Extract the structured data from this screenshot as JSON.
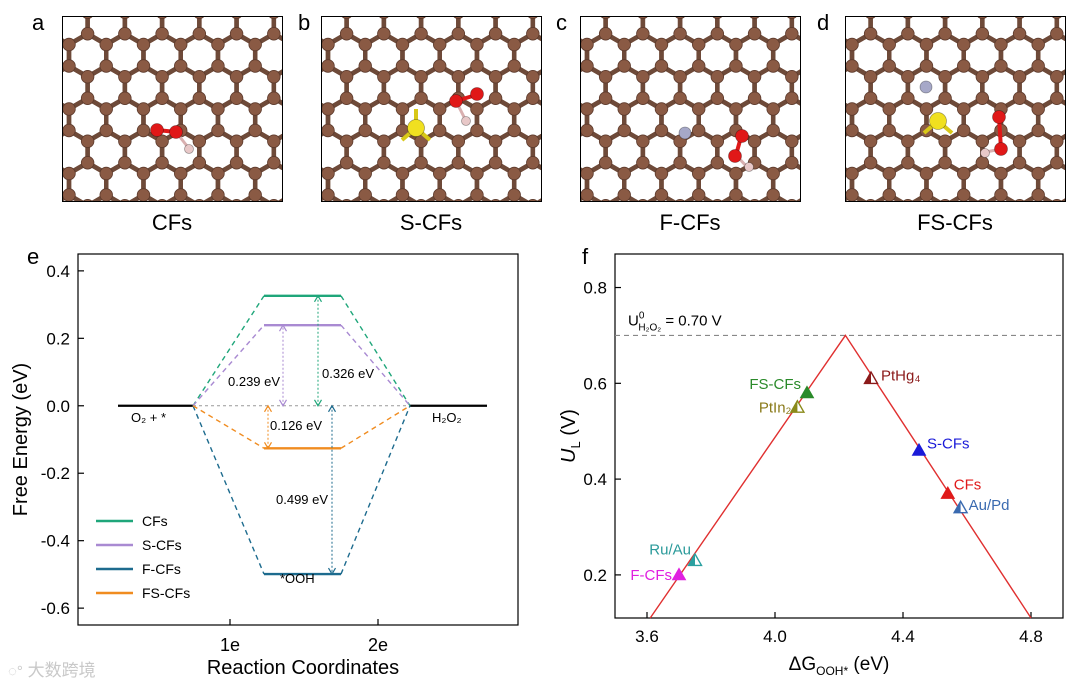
{
  "structures": {
    "panels": [
      {
        "letter": "a",
        "caption": "CFs",
        "dopants": []
      },
      {
        "letter": "b",
        "caption": "S-CFs",
        "dopants": [
          "S"
        ]
      },
      {
        "letter": "c",
        "caption": "F-CFs",
        "dopants": [
          "F"
        ]
      },
      {
        "letter": "d",
        "caption": "FS-CFs",
        "dopants": [
          "S",
          "F"
        ]
      }
    ],
    "colors": {
      "carbon": "#8a5a44",
      "bond": "#6e4a39",
      "oxygen": "#e01818",
      "hydrogen": "#e8c8c8",
      "sulfur": "#f0e020",
      "fluorine": "#a6a8c8"
    }
  },
  "chart_data": [
    {
      "panel": "e",
      "type": "line",
      "title": "",
      "xlabel": "Reaction Coordinates",
      "ylabel": "Free Energy (eV)",
      "ylim": [
        -0.65,
        0.45
      ],
      "yticks": [
        "0.4",
        "0.2",
        "0.0",
        "-0.2",
        "-0.4",
        "-0.6"
      ],
      "yticks_values": [
        0.4,
        0.2,
        0.0,
        -0.2,
        -0.4,
        -0.6
      ],
      "xticks": [
        "1e",
        "2e"
      ],
      "levels": [
        {
          "name": "CFs",
          "ooh": 0.326,
          "color": "#1fa67a"
        },
        {
          "name": "S-CFs",
          "ooh": 0.239,
          "color": "#a98ad2"
        },
        {
          "name": "F-CFs",
          "ooh": -0.499,
          "color": "#1d6b8e"
        },
        {
          "name": "FS-CFs",
          "ooh": -0.126,
          "color": "#f08c20"
        }
      ],
      "state_labels": {
        "initial": "O₂ + *",
        "intermediate": "*OOH",
        "final": "H₂O₂"
      },
      "annotations": [
        "0.239 eV",
        "0.326 eV",
        "0.126 eV",
        "0.499 eV"
      ]
    },
    {
      "panel": "f",
      "type": "scatter",
      "title": "",
      "xlabel": "ΔG",
      "xlabel_sub": "OOH*",
      "xlabel_suffix": " (eV)",
      "ylabel": "U",
      "ylabel_sub": "L",
      "ylabel_suffix": " (V)",
      "xlim": [
        3.5,
        4.9
      ],
      "ylim": [
        0.11,
        0.87
      ],
      "xticks": [
        "3.6",
        "4.0",
        "4.4",
        "4.8"
      ],
      "xticks_values": [
        3.6,
        4.0,
        4.4,
        4.8
      ],
      "yticks": [
        "0.2",
        "0.4",
        "0.6",
        "0.8"
      ],
      "yticks_values": [
        0.2,
        0.4,
        0.6,
        0.8
      ],
      "volcano": {
        "apex": [
          4.22,
          0.7
        ],
        "left_end": [
          3.61,
          0.11
        ],
        "right_end": [
          4.8,
          0.11
        ],
        "color": "#e03030"
      },
      "reference": {
        "value": 0.7,
        "label_prefix": "U",
        "label_sup": "0",
        "label_sub": "H₂O₂",
        "label_suffix": " = 0.70 V"
      },
      "points": [
        {
          "name": "FS-CFs",
          "x": 4.1,
          "y": 0.58,
          "color": "#2a8a2a",
          "filled": true,
          "text_color": "#2a8a2a"
        },
        {
          "name": "PtIn₂",
          "x": 4.07,
          "y": 0.55,
          "color": "#8a8a1a",
          "filled": false,
          "text_color": "#8a7a1a"
        },
        {
          "name": "PtHg₄",
          "x": 4.3,
          "y": 0.61,
          "color": "#8b1a1a",
          "filled": false,
          "text_color": "#8b1a1a"
        },
        {
          "name": "S-CFs",
          "x": 4.45,
          "y": 0.46,
          "color": "#1a1ad8",
          "filled": true,
          "text_color": "#1a1ad8"
        },
        {
          "name": "CFs",
          "x": 4.54,
          "y": 0.37,
          "color": "#e01a1a",
          "filled": true,
          "text_color": "#e01a1a"
        },
        {
          "name": "Au/Pd",
          "x": 4.58,
          "y": 0.34,
          "color": "#3a6ab0",
          "filled": false,
          "text_color": "#3a6ab0"
        },
        {
          "name": "Ru/Au",
          "x": 3.75,
          "y": 0.23,
          "color": "#2aa0a0",
          "filled": false,
          "text_color": "#2a9a9a"
        },
        {
          "name": "F-CFs",
          "x": 3.7,
          "y": 0.2,
          "color": "#e020e0",
          "filled": true,
          "text_color": "#e020e0"
        }
      ]
    }
  ],
  "panel_letters": {
    "e": "e",
    "f": "f"
  },
  "watermark": "大数跨境"
}
